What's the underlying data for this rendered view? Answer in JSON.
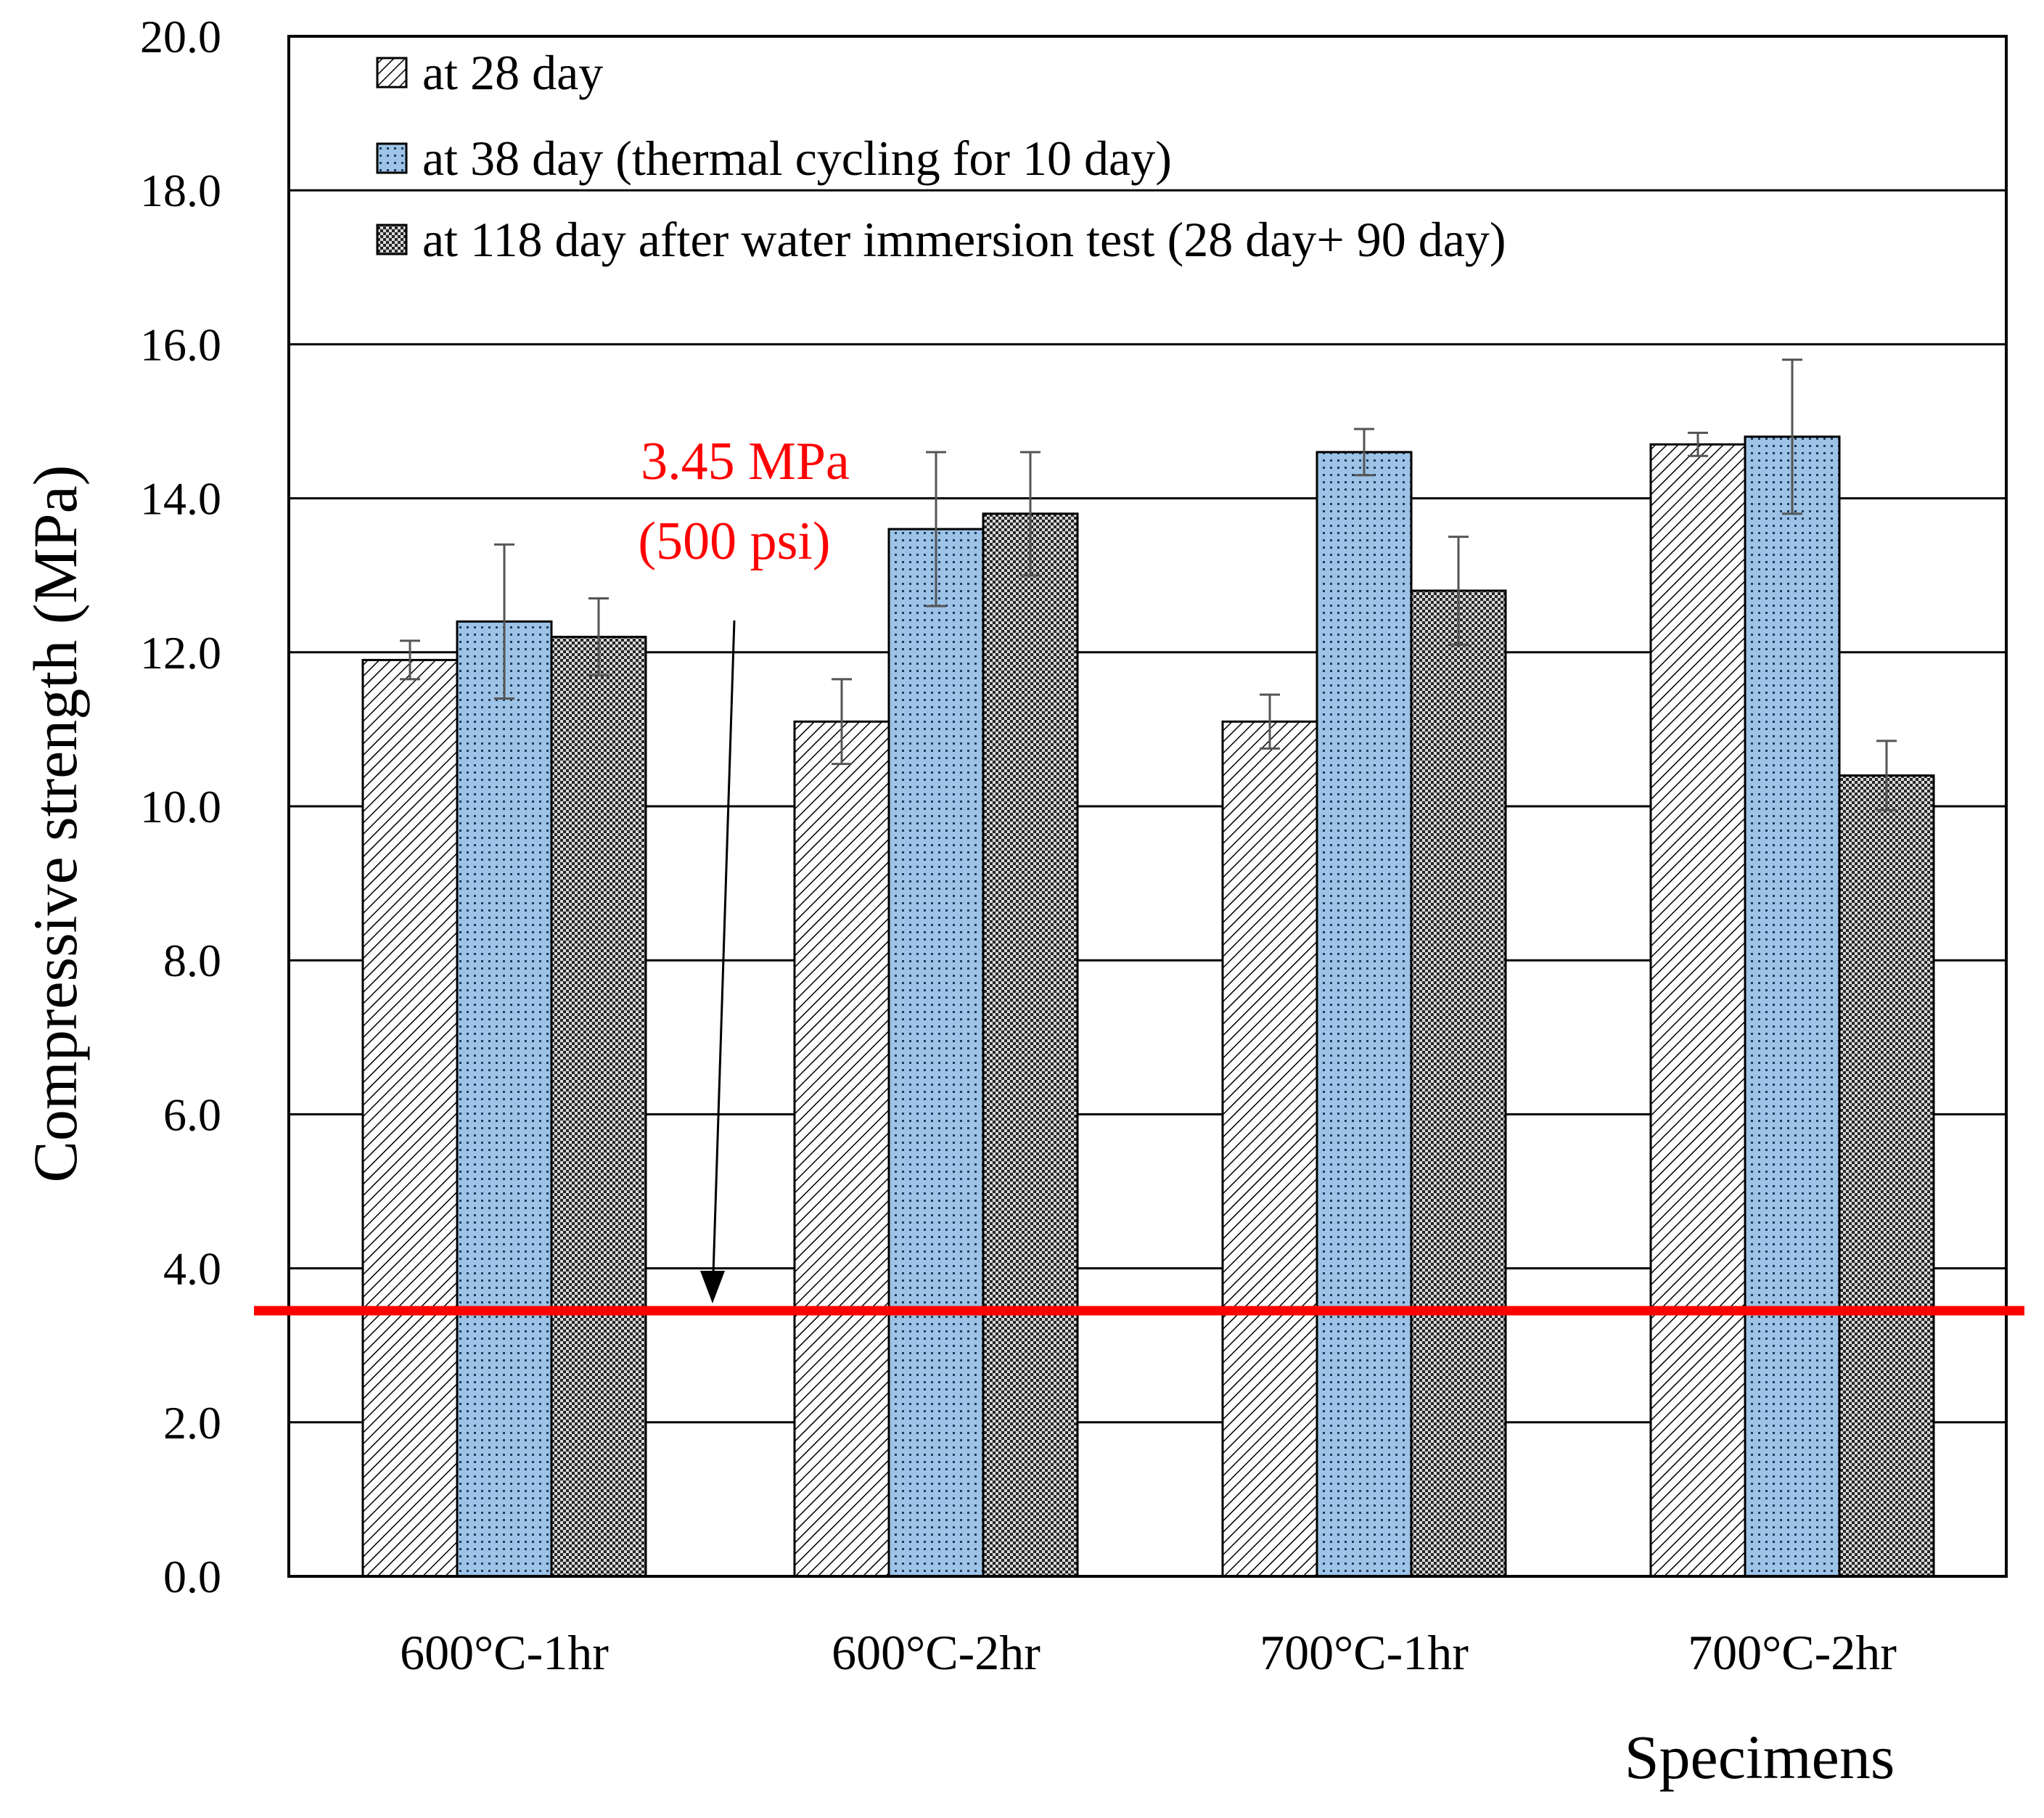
{
  "chart_data": {
    "type": "bar",
    "title": "",
    "xlabel": "Specimens",
    "ylabel": "Compressive strength (MPa)",
    "ylim": [
      0,
      20
    ],
    "yticks": [
      0,
      2,
      4,
      6,
      8,
      10,
      12,
      14,
      16,
      18,
      20
    ],
    "ytick_labels": [
      "0.0",
      "2.0",
      "4.0",
      "6.0",
      "8.0",
      "10.0",
      "12.0",
      "14.0",
      "16.0",
      "18.0",
      "20.0"
    ],
    "grid": true,
    "legend_position": "top-left",
    "categories": [
      "600°C-1hr",
      "600°C-2hr",
      "700°C-1hr",
      "700°C-2hr"
    ],
    "series": [
      {
        "name": "at 28 day",
        "pattern": "diagonal-hatch",
        "color": "#ffffff",
        "values": [
          11.9,
          11.1,
          11.1,
          14.7
        ],
        "errors": [
          0.25,
          0.55,
          0.35,
          0.15
        ]
      },
      {
        "name": "at 38 day (thermal cycling for 10 day)",
        "pattern": "dots",
        "color": "#9dc3e6",
        "values": [
          12.4,
          13.6,
          14.6,
          14.8
        ],
        "errors": [
          1.0,
          1.0,
          0.3,
          1.0
        ]
      },
      {
        "name": "at 118 day after water immersion test (28 day+ 90 day)",
        "pattern": "dense-checker",
        "color": "#a6a6a6",
        "values": [
          12.2,
          13.8,
          12.8,
          10.4
        ],
        "errors": [
          0.5,
          0.8,
          0.7,
          0.45
        ]
      }
    ],
    "reference_line": {
      "value": 3.45,
      "color": "#ff0000",
      "label_line1": "3.45 MPa",
      "label_line2": "(500 psi)"
    }
  }
}
